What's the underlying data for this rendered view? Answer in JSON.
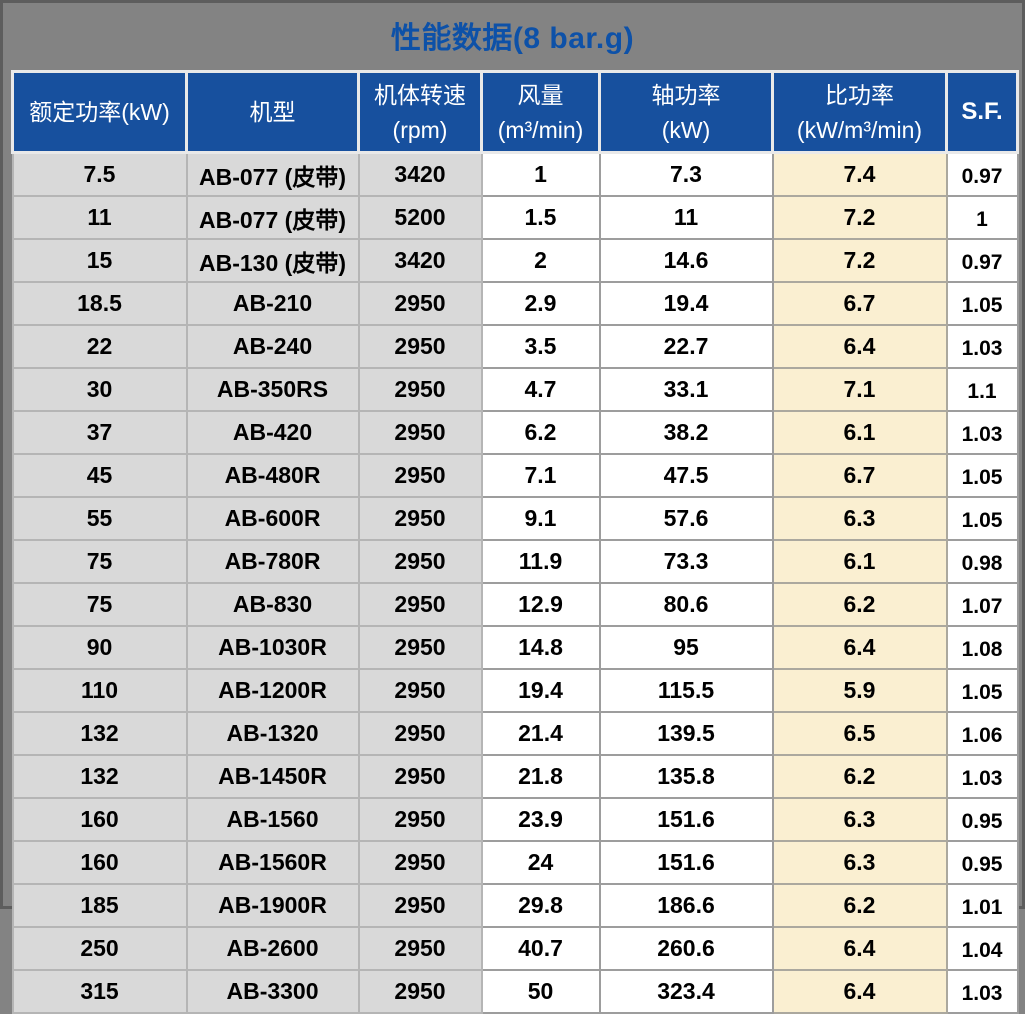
{
  "title": "性能数据(8 bar.g)",
  "table": {
    "headers": [
      {
        "top": "额定功率(kW)",
        "bottom": ""
      },
      {
        "top": "机型",
        "bottom": ""
      },
      {
        "top": "机体转速",
        "bottom": "(rpm)"
      },
      {
        "top": "风量",
        "bottom": "(m³/min)"
      },
      {
        "top": "轴功率",
        "bottom": "(kW)"
      },
      {
        "top": "比功率",
        "bottom": "(kW/m³/min)"
      },
      {
        "top": "S.F.",
        "bottom": ""
      }
    ],
    "column_colors": {
      "header_bg": "#17509e",
      "gray_cell_bg": "#d9d9d9",
      "white_cell_bg": "#ffffff",
      "cream_cell_bg": "#faefd1",
      "title_color": "#0d51a8",
      "page_bg": "#838383"
    },
    "rows": [
      [
        "7.5",
        "AB-077 (皮带)",
        "3420",
        "1",
        "7.3",
        "7.4",
        "0.97"
      ],
      [
        "11",
        "AB-077 (皮带)",
        "5200",
        "1.5",
        "11",
        "7.2",
        "1"
      ],
      [
        "15",
        "AB-130 (皮带)",
        "3420",
        "2",
        "14.6",
        "7.2",
        "0.97"
      ],
      [
        "18.5",
        "AB-210",
        "2950",
        "2.9",
        "19.4",
        "6.7",
        "1.05"
      ],
      [
        "22",
        "AB-240",
        "2950",
        "3.5",
        "22.7",
        "6.4",
        "1.03"
      ],
      [
        "30",
        "AB-350RS",
        "2950",
        "4.7",
        "33.1",
        "7.1",
        "1.1"
      ],
      [
        "37",
        "AB-420",
        "2950",
        "6.2",
        "38.2",
        "6.1",
        "1.03"
      ],
      [
        "45",
        "AB-480R",
        "2950",
        "7.1",
        "47.5",
        "6.7",
        "1.05"
      ],
      [
        "55",
        "AB-600R",
        "2950",
        "9.1",
        "57.6",
        "6.3",
        "1.05"
      ],
      [
        "75",
        "AB-780R",
        "2950",
        "11.9",
        "73.3",
        "6.1",
        "0.98"
      ],
      [
        "75",
        "AB-830",
        "2950",
        "12.9",
        "80.6",
        "6.2",
        "1.07"
      ],
      [
        "90",
        "AB-1030R",
        "2950",
        "14.8",
        "95",
        "6.4",
        "1.08"
      ],
      [
        "110",
        "AB-1200R",
        "2950",
        "19.4",
        "115.5",
        "5.9",
        "1.05"
      ],
      [
        "132",
        "AB-1320",
        "2950",
        "21.4",
        "139.5",
        "6.5",
        "1.06"
      ],
      [
        "132",
        "AB-1450R",
        "2950",
        "21.8",
        "135.8",
        "6.2",
        "1.03"
      ],
      [
        "160",
        "AB-1560",
        "2950",
        "23.9",
        "151.6",
        "6.3",
        "0.95"
      ],
      [
        "160",
        "AB-1560R",
        "2950",
        "24",
        "151.6",
        "6.3",
        "0.95"
      ],
      [
        "185",
        "AB-1900R",
        "2950",
        "29.8",
        "186.6",
        "6.2",
        "1.01"
      ],
      [
        "250",
        "AB-2600",
        "2950",
        "40.7",
        "260.6",
        "6.4",
        "1.04"
      ],
      [
        "315",
        "AB-3300",
        "2950",
        "50",
        "323.4",
        "6.4",
        "1.03"
      ]
    ]
  }
}
